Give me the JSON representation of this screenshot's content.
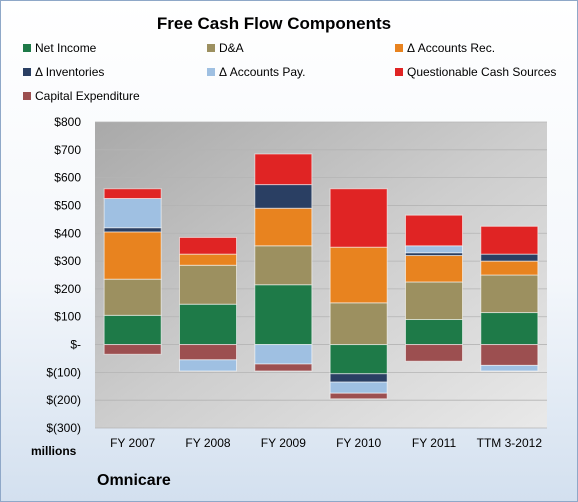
{
  "chart_data": {
    "type": "bar",
    "stacked": true,
    "title": "Free Cash Flow Components",
    "units_label": "millions",
    "company": "Omnicare",
    "categories": [
      "FY 2007",
      "FY 2008",
      "FY 2009",
      "FY 2010",
      "FY 2011",
      "TTM 3-2012"
    ],
    "ylim": [
      -300,
      800
    ],
    "yticks": [
      "$800",
      "$700",
      "$600",
      "$500",
      "$400",
      "$300",
      "$200",
      "$100",
      "$-",
      "$(100)",
      "$(200)",
      "$(300)"
    ],
    "ytick_values": [
      800,
      700,
      600,
      500,
      400,
      300,
      200,
      100,
      0,
      -100,
      -200,
      -300
    ],
    "legend_placement": "top",
    "series": [
      {
        "name": "Net Income",
        "color": "#1e7a48",
        "values": [
          105,
          145,
          215,
          -105,
          90,
          115
        ]
      },
      {
        "name": "D&A",
        "color": "#9c9060",
        "values": [
          130,
          140,
          140,
          150,
          135,
          135
        ]
      },
      {
        "name": "Δ Accounts Rec.",
        "color": "#e8831f",
        "values": [
          170,
          40,
          135,
          200,
          95,
          50
        ]
      },
      {
        "name": "Δ Inventories",
        "color": "#2a3f63",
        "values": [
          15,
          0,
          85,
          -30,
          10,
          25
        ]
      },
      {
        "name": "Δ Accounts Pay.",
        "color": "#9fc0e2",
        "values": [
          105,
          0,
          -70,
          -40,
          25,
          0
        ]
      },
      {
        "name": "Questionable Cash Sources",
        "color": "#e02424",
        "values": [
          35,
          60,
          110,
          210,
          110,
          100
        ]
      },
      {
        "name": "Capital Expenditure",
        "color": "#9c4f50",
        "values": [
          -35,
          -55,
          -25,
          -20,
          -60,
          -75
        ]
      }
    ],
    "extra_negative": [
      0,
      -40,
      0,
      0,
      0,
      -20
    ],
    "extra_negative_series": "Δ Accounts Pay."
  }
}
